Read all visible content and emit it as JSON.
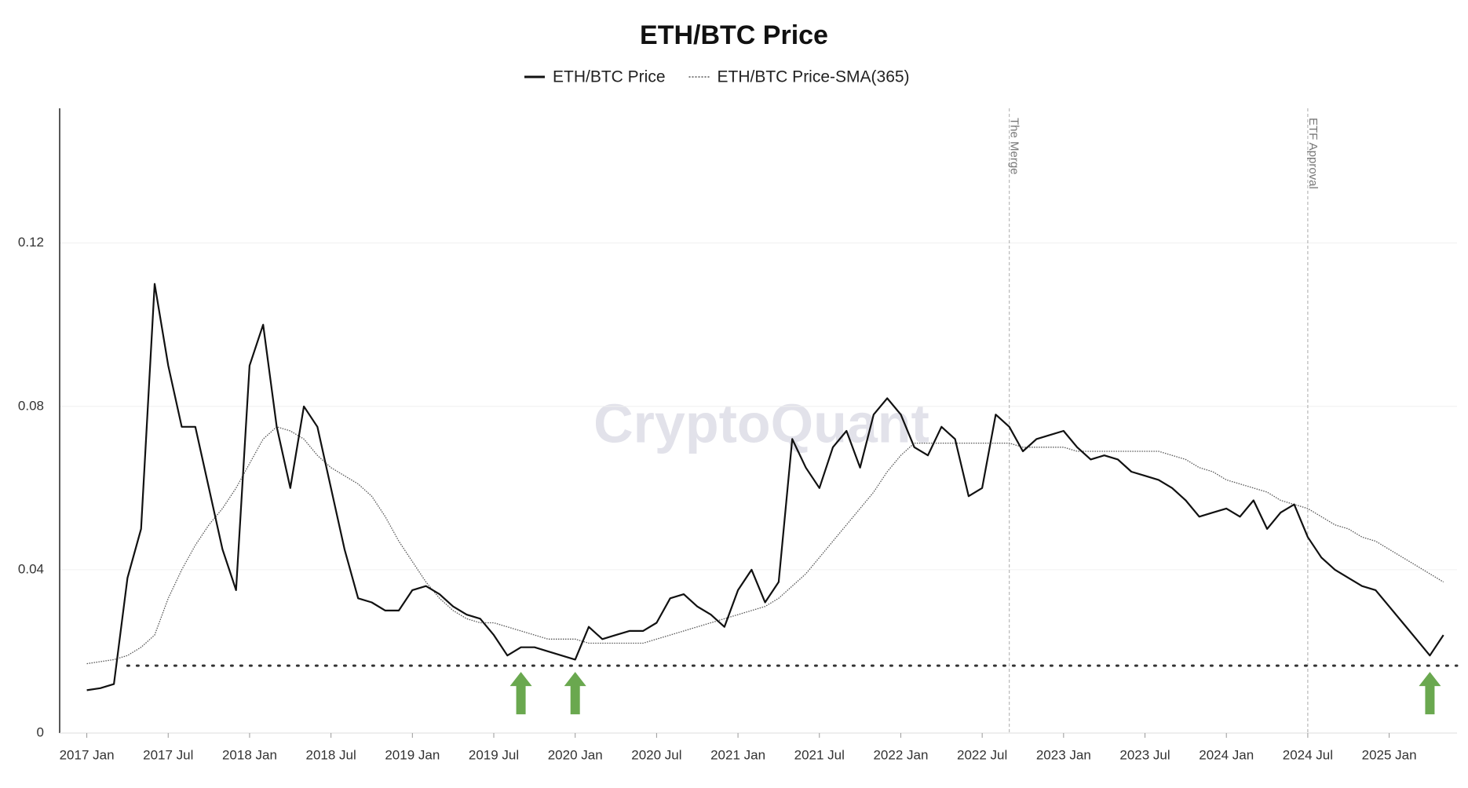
{
  "chart_data": {
    "type": "line",
    "title": "ETH/BTC Price",
    "watermark": "CryptoQuant",
    "grid": true,
    "ylim": [
      0,
      0.153
    ],
    "yticks": [
      0,
      0.04,
      0.08,
      0.12
    ],
    "xlim": [
      "2016-11",
      "2025-06"
    ],
    "xticks": [
      {
        "value": "2017-01",
        "label": "2017 Jan"
      },
      {
        "value": "2017-07",
        "label": "2017 Jul"
      },
      {
        "value": "2018-01",
        "label": "2018 Jan"
      },
      {
        "value": "2018-07",
        "label": "2018 Jul"
      },
      {
        "value": "2019-01",
        "label": "2019 Jan"
      },
      {
        "value": "2019-07",
        "label": "2019 Jul"
      },
      {
        "value": "2020-01",
        "label": "2020 Jan"
      },
      {
        "value": "2020-07",
        "label": "2020 Jul"
      },
      {
        "value": "2021-01",
        "label": "2021 Jan"
      },
      {
        "value": "2021-07",
        "label": "2021 Jul"
      },
      {
        "value": "2022-01",
        "label": "2022 Jan"
      },
      {
        "value": "2022-07",
        "label": "2022 Jul"
      },
      {
        "value": "2023-01",
        "label": "2023 Jan"
      },
      {
        "value": "2023-07",
        "label": "2023 Jul"
      },
      {
        "value": "2024-01",
        "label": "2024 Jan"
      },
      {
        "value": "2024-07",
        "label": "2024 Jul"
      },
      {
        "value": "2025-01",
        "label": "2025 Jan"
      }
    ],
    "x": [
      "2017-01",
      "2017-02",
      "2017-03",
      "2017-04",
      "2017-05",
      "2017-06",
      "2017-07",
      "2017-08",
      "2017-09",
      "2017-10",
      "2017-11",
      "2017-12",
      "2018-01",
      "2018-02",
      "2018-03",
      "2018-04",
      "2018-05",
      "2018-06",
      "2018-07",
      "2018-08",
      "2018-09",
      "2018-10",
      "2018-11",
      "2018-12",
      "2019-01",
      "2019-02",
      "2019-03",
      "2019-04",
      "2019-05",
      "2019-06",
      "2019-07",
      "2019-08",
      "2019-09",
      "2019-10",
      "2019-11",
      "2019-12",
      "2020-01",
      "2020-02",
      "2020-03",
      "2020-04",
      "2020-05",
      "2020-06",
      "2020-07",
      "2020-08",
      "2020-09",
      "2020-10",
      "2020-11",
      "2020-12",
      "2021-01",
      "2021-02",
      "2021-03",
      "2021-04",
      "2021-05",
      "2021-06",
      "2021-07",
      "2021-08",
      "2021-09",
      "2021-10",
      "2021-11",
      "2021-12",
      "2022-01",
      "2022-02",
      "2022-03",
      "2022-04",
      "2022-05",
      "2022-06",
      "2022-07",
      "2022-08",
      "2022-09",
      "2022-10",
      "2022-11",
      "2022-12",
      "2023-01",
      "2023-02",
      "2023-03",
      "2023-04",
      "2023-05",
      "2023-06",
      "2023-07",
      "2023-08",
      "2023-09",
      "2023-10",
      "2023-11",
      "2023-12",
      "2024-01",
      "2024-02",
      "2024-03",
      "2024-04",
      "2024-05",
      "2024-06",
      "2024-07",
      "2024-08",
      "2024-09",
      "2024-10",
      "2024-11",
      "2024-12",
      "2025-01",
      "2025-02",
      "2025-03",
      "2025-04",
      "2025-05"
    ],
    "series": [
      {
        "name": "ETH/BTC Price",
        "color": "#111111",
        "style": "solid",
        "values": [
          0.0105,
          0.011,
          0.012,
          0.038,
          0.05,
          0.11,
          0.09,
          0.075,
          0.075,
          0.06,
          0.045,
          0.035,
          0.09,
          0.1,
          0.075,
          0.06,
          0.08,
          0.075,
          0.06,
          0.045,
          0.033,
          0.032,
          0.03,
          0.03,
          0.035,
          0.036,
          0.034,
          0.031,
          0.029,
          0.028,
          0.024,
          0.019,
          0.021,
          0.021,
          0.02,
          0.019,
          0.018,
          0.026,
          0.023,
          0.024,
          0.025,
          0.025,
          0.027,
          0.033,
          0.034,
          0.031,
          0.029,
          0.026,
          0.035,
          0.04,
          0.032,
          0.037,
          0.072,
          0.065,
          0.06,
          0.07,
          0.074,
          0.065,
          0.078,
          0.082,
          0.078,
          0.07,
          0.068,
          0.075,
          0.072,
          0.058,
          0.06,
          0.078,
          0.075,
          0.069,
          0.072,
          0.073,
          0.074,
          0.07,
          0.067,
          0.068,
          0.067,
          0.064,
          0.063,
          0.062,
          0.06,
          0.057,
          0.053,
          0.054,
          0.055,
          0.053,
          0.057,
          0.05,
          0.054,
          0.056,
          0.048,
          0.043,
          0.04,
          0.038,
          0.036,
          0.035,
          0.031,
          0.027,
          0.023,
          0.019,
          0.024
        ]
      },
      {
        "name": "ETH/BTC Price-SMA(365)",
        "color": "#555555",
        "style": "dotted",
        "values": [
          0.017,
          0.0175,
          0.018,
          0.019,
          0.021,
          0.024,
          0.033,
          0.04,
          0.046,
          0.051,
          0.055,
          0.06,
          0.066,
          0.072,
          0.075,
          0.074,
          0.072,
          0.068,
          0.065,
          0.063,
          0.061,
          0.058,
          0.053,
          0.047,
          0.042,
          0.037,
          0.033,
          0.03,
          0.028,
          0.027,
          0.027,
          0.026,
          0.025,
          0.024,
          0.023,
          0.023,
          0.023,
          0.022,
          0.022,
          0.022,
          0.022,
          0.022,
          0.023,
          0.024,
          0.025,
          0.026,
          0.027,
          0.028,
          0.029,
          0.03,
          0.031,
          0.033,
          0.036,
          0.039,
          0.043,
          0.047,
          0.051,
          0.055,
          0.059,
          0.064,
          0.068,
          0.071,
          0.071,
          0.071,
          0.071,
          0.071,
          0.071,
          0.071,
          0.071,
          0.07,
          0.07,
          0.07,
          0.07,
          0.069,
          0.069,
          0.069,
          0.069,
          0.069,
          0.069,
          0.069,
          0.068,
          0.067,
          0.065,
          0.064,
          0.062,
          0.061,
          0.06,
          0.059,
          0.057,
          0.056,
          0.055,
          0.053,
          0.051,
          0.05,
          0.048,
          0.047,
          0.045,
          0.043,
          0.041,
          0.039,
          0.037
        ]
      }
    ],
    "annotations": [
      {
        "x": "2022-09",
        "label": "The Merge"
      },
      {
        "x": "2024-07",
        "label": "ETF Approval"
      }
    ],
    "support_level": 0.0165,
    "arrows": [
      "2019-09",
      "2020-01",
      "2025-04"
    ]
  }
}
